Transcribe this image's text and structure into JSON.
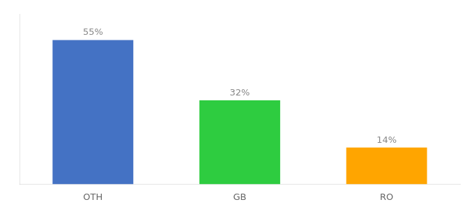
{
  "chart_data": {
    "type": "bar",
    "categories": [
      "OTH",
      "GB",
      "RO"
    ],
    "values": [
      55,
      32,
      14
    ],
    "value_labels": [
      "55%",
      "32%",
      "14%"
    ],
    "colors": [
      "#4472C4",
      "#2ECC40",
      "#FFA500"
    ],
    "ylim": [
      0,
      65
    ],
    "grid": false,
    "data_labels": true,
    "tick_labels": "x"
  }
}
